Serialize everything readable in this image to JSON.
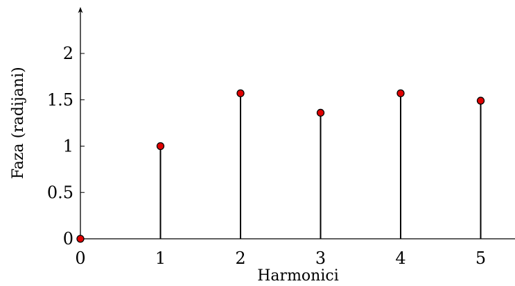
{
  "chart_data": {
    "type": "stem",
    "xlabel": "Harmonici",
    "ylabel": "Faza (radijani)",
    "x": [
      0,
      1,
      2,
      3,
      4,
      5
    ],
    "values": [
      0,
      1.0,
      1.57,
      1.36,
      1.57,
      1.49
    ],
    "x_ticks": [
      "0",
      "1",
      "2",
      "3",
      "4",
      "5"
    ],
    "y_ticks": [
      "0",
      "0.5",
      "1",
      "1.5",
      "2"
    ],
    "y_tick_values": [
      0,
      0.5,
      1,
      1.5,
      2
    ],
    "xlim": [
      0,
      5.5
    ],
    "ylim": [
      0,
      2.5
    ],
    "grid": false,
    "marker_color": "#e00000",
    "stem_color": "#000000"
  }
}
